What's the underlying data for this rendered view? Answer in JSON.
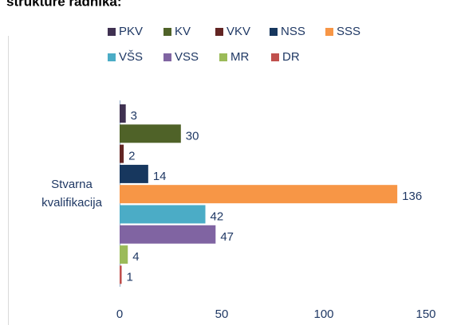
{
  "chart_data": {
    "type": "bar",
    "orientation": "horizontal",
    "title": "strukture radnika:",
    "categories": [
      "Stvarna kvalifikacija"
    ],
    "series": [
      {
        "name": "PKV",
        "color": "#3f3151",
        "values": [
          3
        ]
      },
      {
        "name": "KV",
        "color": "#4f6228",
        "values": [
          30
        ]
      },
      {
        "name": "VKV",
        "color": "#632523",
        "values": [
          2
        ]
      },
      {
        "name": "NSS",
        "color": "#17375e",
        "values": [
          14
        ]
      },
      {
        "name": "SSS",
        "color": "#f79646",
        "values": [
          136
        ]
      },
      {
        "name": "VŠS",
        "color": "#4bacc6",
        "values": [
          42
        ]
      },
      {
        "name": "VSS",
        "color": "#8064a2",
        "values": [
          47
        ]
      },
      {
        "name": "MR",
        "color": "#9bbb59",
        "values": [
          4
        ]
      },
      {
        "name": "DR",
        "color": "#c0504d",
        "values": [
          1
        ]
      }
    ],
    "xlim": [
      0,
      150
    ],
    "xticks": [
      0,
      50,
      100,
      150
    ],
    "legend": "top",
    "grid": false
  }
}
